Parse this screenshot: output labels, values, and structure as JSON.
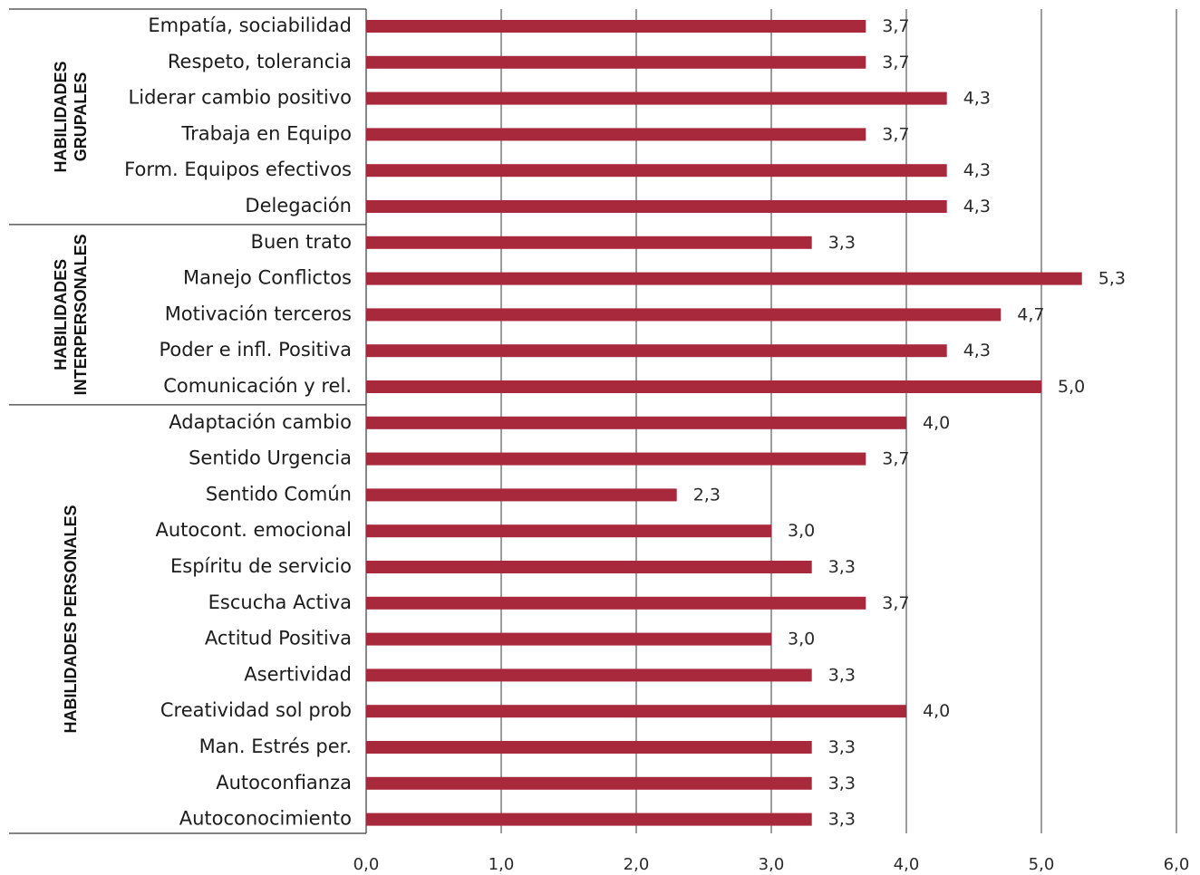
{
  "chart_data": {
    "type": "bar",
    "orientation": "horizontal",
    "categories": [
      "Empatía, sociabilidad",
      "Respeto, tolerancia",
      "Liderar cambio positivo",
      "Trabaja en Equipo",
      "Form. Equipos efectivos",
      "Delegación",
      "Buen trato",
      "Manejo Conflictos",
      "Motivación terceros",
      "Poder e infl. Positiva",
      "Comunicación y rel.",
      "Adaptación cambio",
      "Sentido Urgencia",
      "Sentido Común",
      "Autocont. emocional",
      "Espíritu de servicio",
      "Escucha Activa",
      "Actitud Positiva",
      "Asertividad",
      "Creatividad sol prob",
      "Man. Estrés per.",
      "Autoconfianza",
      "Autoconocimiento"
    ],
    "values": [
      3.7,
      3.7,
      4.3,
      3.7,
      4.3,
      4.3,
      3.3,
      5.3,
      4.7,
      4.3,
      5.0,
      4.0,
      3.7,
      2.3,
      3.0,
      3.3,
      3.7,
      3.0,
      3.3,
      4.0,
      3.3,
      3.3,
      3.3
    ],
    "value_labels": [
      "3,7",
      "3,7",
      "4,3",
      "3,7",
      "4,3",
      "4,3",
      "3,3",
      "5,3",
      "4,7",
      "4,3",
      "5,0",
      "4,0",
      "3,7",
      "2,3",
      "3,0",
      "3,3",
      "3,7",
      "3,0",
      "3,3",
      "4,0",
      "3,3",
      "3,3",
      "3,3"
    ],
    "groups": [
      {
        "lines": [
          "HABILIDADES",
          "GRUPALES"
        ],
        "start": 0,
        "count": 6
      },
      {
        "lines": [
          "HABILIDADES",
          "INTERPERSONALES"
        ],
        "start": 6,
        "count": 5
      },
      {
        "lines": [
          "HABILIDADES PERSONALES"
        ],
        "start": 11,
        "count": 12
      }
    ],
    "xlim": [
      0,
      6
    ],
    "x_ticks": [
      "0,0",
      "1,0",
      "2,0",
      "3,0",
      "4,0",
      "5,0",
      "6,0"
    ],
    "grid": true,
    "bar_color": "#a8283c",
    "title": "",
    "xlabel": "",
    "ylabel": ""
  }
}
